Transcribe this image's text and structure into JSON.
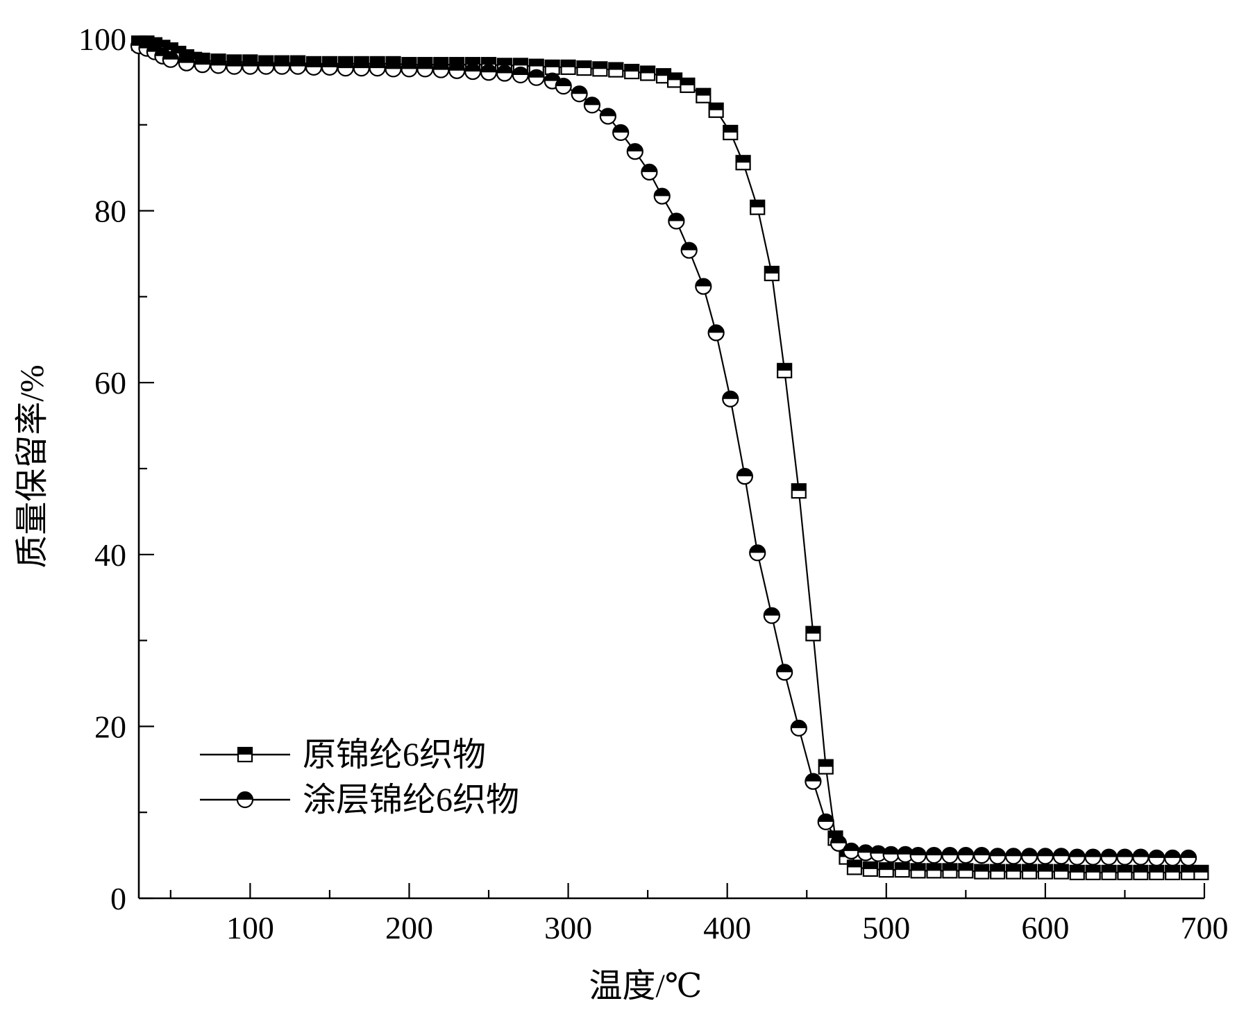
{
  "chart_data": {
    "type": "line",
    "title": "",
    "xlabel": "温度/℃",
    "ylabel": "质量保留率/%",
    "xlim": [
      30,
      700
    ],
    "ylim": [
      0,
      100
    ],
    "x_ticks": [
      100,
      200,
      300,
      400,
      500,
      600,
      700
    ],
    "y_ticks": [
      0,
      20,
      40,
      60,
      80,
      100
    ],
    "x_tick_labels": [
      "100",
      "200",
      "300",
      "400",
      "500",
      "600",
      "700"
    ],
    "y_tick_labels": [
      "0",
      "20",
      "40",
      "60",
      "80",
      "100"
    ],
    "grid": false,
    "legend_position": "bottom-left",
    "series": [
      {
        "name": "原锦纶6织物",
        "marker": "half-filled-square",
        "color": "#000000",
        "x": [
          30,
          35,
          40,
          45,
          50,
          55,
          60,
          65,
          70,
          80,
          90,
          100,
          110,
          120,
          130,
          140,
          150,
          160,
          170,
          180,
          190,
          200,
          210,
          220,
          230,
          240,
          250,
          260,
          270,
          280,
          290,
          300,
          310,
          320,
          330,
          340,
          350,
          360,
          367,
          375,
          385,
          393,
          402,
          410,
          419,
          428,
          436,
          445,
          454,
          462,
          468,
          475,
          480,
          490,
          500,
          510,
          520,
          530,
          540,
          550,
          560,
          570,
          580,
          590,
          600,
          610,
          620,
          630,
          640,
          650,
          660,
          670,
          680,
          690,
          698
        ],
        "y": [
          99.5,
          99.5,
          99.3,
          99.0,
          98.7,
          98.3,
          97.9,
          97.6,
          97.5,
          97.4,
          97.3,
          97.3,
          97.2,
          97.2,
          97.2,
          97.1,
          97.1,
          97.1,
          97.1,
          97.1,
          97.1,
          97.0,
          97.0,
          97.0,
          97.0,
          97.0,
          97.0,
          96.9,
          96.9,
          96.8,
          96.7,
          96.7,
          96.6,
          96.5,
          96.4,
          96.2,
          96.0,
          95.7,
          95.2,
          94.6,
          93.4,
          91.7,
          89.1,
          85.6,
          80.4,
          72.7,
          61.4,
          47.4,
          30.8,
          15.3,
          7.0,
          4.8,
          3.6,
          3.4,
          3.3,
          3.3,
          3.2,
          3.2,
          3.2,
          3.2,
          3.1,
          3.1,
          3.1,
          3.1,
          3.1,
          3.1,
          3.0,
          3.0,
          3.0,
          3.0,
          3.0,
          3.0,
          3.0,
          3.0,
          3.0
        ]
      },
      {
        "name": "涂层锦纶6织物",
        "marker": "half-filled-circle",
        "color": "#000000",
        "x": [
          30,
          35,
          40,
          45,
          50,
          60,
          70,
          80,
          90,
          100,
          110,
          120,
          130,
          140,
          150,
          160,
          170,
          180,
          190,
          200,
          210,
          220,
          230,
          240,
          250,
          260,
          270,
          280,
          290,
          297,
          307,
          315,
          325,
          333,
          342,
          351,
          359,
          368,
          376,
          385,
          393,
          402,
          411,
          419,
          428,
          436,
          445,
          454,
          462,
          470,
          478,
          487,
          495,
          503,
          512,
          520,
          530,
          540,
          550,
          560,
          570,
          580,
          590,
          600,
          610,
          620,
          630,
          640,
          650,
          660,
          670,
          680,
          690
        ],
        "y": [
          99.2,
          98.9,
          98.5,
          98.0,
          97.6,
          97.2,
          97.0,
          96.9,
          96.8,
          96.8,
          96.8,
          96.8,
          96.8,
          96.7,
          96.7,
          96.6,
          96.6,
          96.6,
          96.5,
          96.5,
          96.5,
          96.4,
          96.3,
          96.2,
          96.1,
          96.0,
          95.8,
          95.5,
          95.1,
          94.5,
          93.6,
          92.3,
          91.0,
          89.1,
          86.9,
          84.5,
          81.7,
          78.8,
          75.4,
          71.2,
          65.8,
          58.1,
          49.1,
          40.2,
          32.9,
          26.3,
          19.8,
          13.6,
          8.9,
          6.4,
          5.5,
          5.3,
          5.2,
          5.1,
          5.1,
          5.0,
          5.0,
          5.0,
          5.0,
          5.0,
          4.9,
          4.9,
          4.9,
          4.9,
          4.9,
          4.8,
          4.8,
          4.8,
          4.8,
          4.8,
          4.7,
          4.7,
          4.7
        ]
      }
    ]
  }
}
